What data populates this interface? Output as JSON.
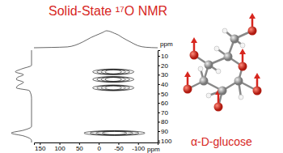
{
  "chart_data": {
    "type": "contour",
    "title": "Solid-State ¹⁷O NMR",
    "xlabel": "ppm",
    "ylabel": "ppm",
    "annotations": [
      "α-D-glucose"
    ],
    "x": [
      -37,
      -37,
      -37,
      -40
    ],
    "values": [
      27,
      35,
      44,
      92
    ],
    "x_widths": [
      105,
      105,
      105,
      155
    ],
    "y_widths": [
      6,
      6,
      6,
      5
    ],
    "color": "#000000",
    "xlim": [
      165,
      -150
    ],
    "ylim": [
      4,
      102
    ],
    "xticks": [
      150,
      100,
      50,
      0,
      -50,
      -100
    ],
    "yticks": [
      10,
      20,
      30,
      40,
      50,
      60,
      70,
      80,
      90,
      100
    ],
    "top_projection": {
      "x": [
        165,
        120,
        80,
        60,
        40,
        20,
        0,
        -10,
        -20,
        -30,
        -40,
        -50,
        -60,
        -80,
        -100,
        -120,
        -150
      ],
      "values": [
        0,
        0.02,
        0.05,
        0.15,
        0.35,
        0.6,
        0.8,
        0.9,
        1,
        0.95,
        0.85,
        0.75,
        0.6,
        0.35,
        0.12,
        0.03,
        0
      ]
    },
    "left_projection": {
      "y": [
        4,
        20,
        24,
        27,
        30,
        33,
        35,
        38,
        42,
        44,
        47,
        55,
        85,
        89,
        92,
        95,
        100,
        102
      ],
      "values": [
        0,
        0,
        0.5,
        0.8,
        0.4,
        0.7,
        0.75,
        0.4,
        0.7,
        0.75,
        0.1,
        0,
        0,
        0.4,
        1,
        0.4,
        0,
        0
      ]
    }
  }
}
